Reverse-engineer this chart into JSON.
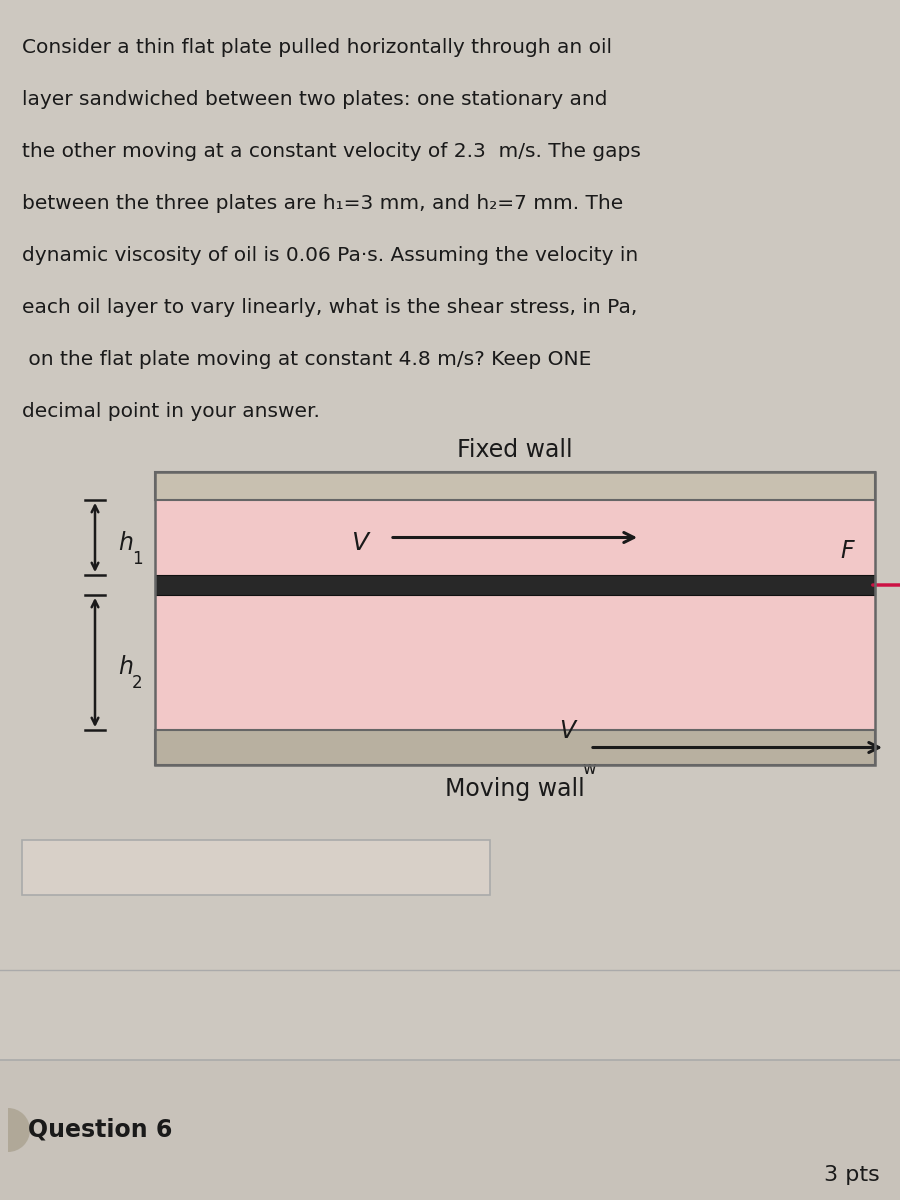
{
  "bg_color": "#cdc8c0",
  "text_lines": [
    [
      "Consider a thin flat plate pulled horizontally through an oil",
      "normal"
    ],
    [
      "layer sandwiched between two plates: one stationary and",
      "normal"
    ],
    [
      "the other moving at a constant velocity of 2.3 ",
      "normal"
    ],
    [
      "m/s",
      "bold"
    ],
    [
      ". The gaps",
      "normal"
    ],
    [
      "between the three plates are h",
      "normal"
    ],
    [
      "₁=3 ",
      "normal"
    ],
    [
      "mm",
      "bold"
    ],
    [
      ", and h",
      "normal"
    ],
    [
      "₂=7 ",
      "normal"
    ],
    [
      "mm",
      "bold"
    ],
    [
      ". The",
      "normal"
    ],
    [
      "dynamic viscosity of oil is 0.06 ",
      "normal"
    ],
    [
      "Pa·s",
      "bold"
    ],
    [
      ". Assuming the velocity in",
      "normal"
    ],
    [
      "each oil layer to vary linearly, what is the shear stress, in ",
      "normal"
    ],
    [
      "Pa",
      "bold"
    ],
    [
      ",",
      "normal"
    ],
    [
      " on the flat plate moving at constant 4.8 ",
      "normal"
    ],
    [
      "m/s",
      "bold"
    ],
    [
      "? ",
      "normal"
    ],
    [
      "Keep ONE",
      "bold"
    ],
    [
      "",
      "normal"
    ],
    [
      "decimal point in your answer.",
      "bold"
    ]
  ],
  "fixed_wall_label": "Fixed wall",
  "moving_wall_label": "Moving wall",
  "h1_label": "h",
  "h1_sub": "1",
  "h2_label": "h",
  "h2_sub": "2",
  "V_label": "V",
  "F_label": "F",
  "Vw_label": "V",
  "Vw_sub": "w",
  "question_label": "Question 6",
  "pts_label": "3 pts",
  "oil_color": "#f2c8c8",
  "fixed_wall_color": "#c8c0b0",
  "moving_wall_color": "#b8b0a0",
  "plate_color": "#282828",
  "arrow_color_black": "#1a1a1a",
  "arrow_color_red": "#cc1144",
  "border_color": "#666666",
  "answer_box_color": "#d8d0c8",
  "answer_box_edge": "#999999",
  "q6_bg": "#d0cac2",
  "text_color": "#1a1a1a"
}
